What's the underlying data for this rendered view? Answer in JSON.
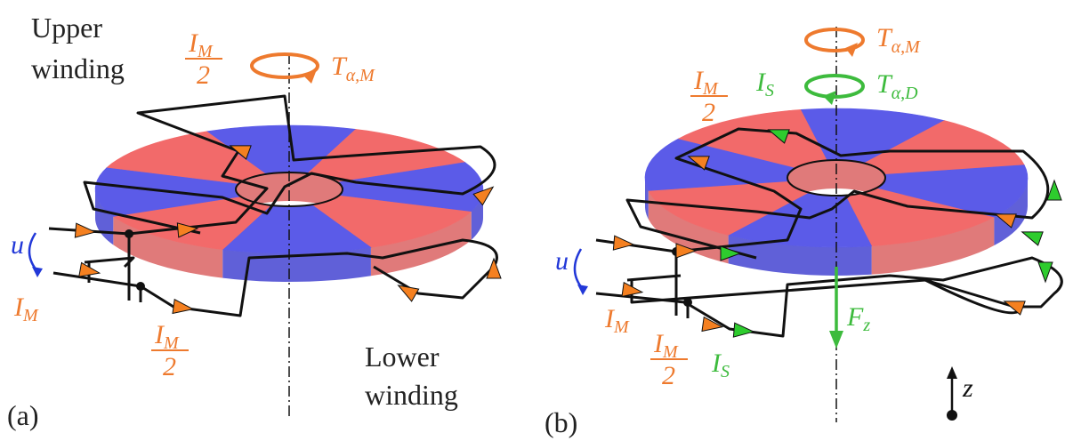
{
  "panel_a": {
    "caption": "(a)",
    "upper_winding": [
      "Upper",
      "winding"
    ],
    "lower_winding": [
      "Lower",
      "winding"
    ],
    "torque": {
      "symbol": "T",
      "sub": "α,M"
    },
    "current_top": {
      "num": "I",
      "num_sub": "M",
      "den": "2"
    },
    "voltage": "u",
    "current_in": {
      "symbol": "I",
      "sub": "M"
    },
    "current_bottom": {
      "num": "I",
      "num_sub": "M",
      "den": "2"
    }
  },
  "panel_b": {
    "caption": "(b)",
    "torque_m": {
      "symbol": "T",
      "sub": "α,M"
    },
    "torque_d": {
      "symbol": "T",
      "sub": "α,D"
    },
    "current_s_top": {
      "symbol": "I",
      "sub": "S"
    },
    "current_top": {
      "num": "I",
      "num_sub": "M",
      "den": "2"
    },
    "voltage": "u",
    "current_in": {
      "symbol": "I",
      "sub": "M"
    },
    "current_bottom": {
      "num": "I",
      "num_sub": "M",
      "den": "2"
    },
    "current_s_bottom": {
      "symbol": "I",
      "sub": "S"
    },
    "force": {
      "symbol": "F",
      "sub": "z"
    },
    "axis": "z"
  }
}
